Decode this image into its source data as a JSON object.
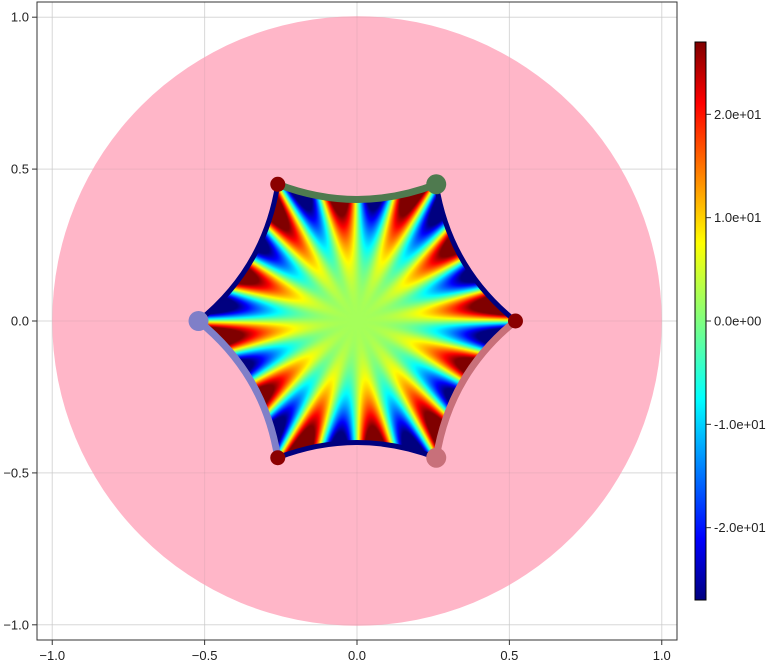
{
  "chart_data": {
    "type": "heatmap",
    "title": "",
    "xlabel": "",
    "ylabel": "",
    "xlim": [
      -1.05,
      1.05
    ],
    "ylim": [
      -1.05,
      1.05
    ],
    "grid": true,
    "x_ticks": [
      -1.0,
      -0.5,
      0.0,
      0.5,
      1.0
    ],
    "x_tick_labels": [
      "−1.0",
      "−0.5",
      "0.0",
      "0.5",
      "1.0"
    ],
    "y_ticks": [
      -1.0,
      -0.5,
      0.0,
      0.5,
      1.0
    ],
    "y_tick_labels": [
      "−1.0",
      "−0.5",
      "0.0",
      "0.5",
      "1.0"
    ],
    "disk": {
      "center": [
        0,
        0
      ],
      "radius": 1.0,
      "color": "#ffb6c8"
    },
    "hexagon": {
      "vertices": [
        [
          0.52,
          0.0
        ],
        [
          0.26,
          0.45
        ],
        [
          -0.26,
          0.45
        ],
        [
          -0.52,
          0.0
        ],
        [
          -0.26,
          -0.45
        ],
        [
          0.26,
          -0.45
        ]
      ],
      "edge_sag": 0.1,
      "boundary_color": "#00007f",
      "center_value": 2.0,
      "lobes_per_edge": 2,
      "lobe_peak": 27
    },
    "highlighted_edges": [
      {
        "from": 1,
        "to": 2,
        "color": "#4f7a4f"
      },
      {
        "from": 3,
        "to": 4,
        "color": "#7f7fc8"
      },
      {
        "from": 5,
        "to": 0,
        "color": "#c8707a"
      }
    ],
    "vertex_markers": [
      {
        "x": 0.26,
        "y": 0.45,
        "color": "#4f7a4f",
        "size": "large"
      },
      {
        "x": -0.52,
        "y": 0.0,
        "color": "#7f7fc8",
        "size": "large"
      },
      {
        "x": 0.26,
        "y": -0.45,
        "color": "#c8707a",
        "size": "large"
      },
      {
        "x": -0.26,
        "y": 0.45,
        "color": "#8b0000",
        "size": "small"
      },
      {
        "x": -0.26,
        "y": -0.45,
        "color": "#8b0000",
        "size": "small"
      },
      {
        "x": 0.52,
        "y": 0.0,
        "color": "#8b0000",
        "size": "small"
      }
    ],
    "colorbar": {
      "colormap": "jet",
      "range": [
        -27,
        27
      ],
      "ticks": [
        -20,
        -10,
        0,
        10,
        20
      ],
      "tick_labels": [
        "-2.0e+01",
        "-1.0e+01",
        "0.0e+00",
        "1.0e+01",
        "2.0e+01"
      ]
    }
  }
}
